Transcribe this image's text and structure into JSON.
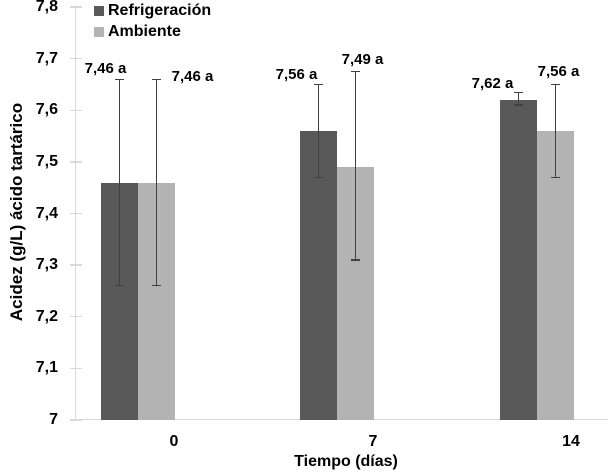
{
  "chart_data": {
    "type": "bar",
    "title": "",
    "xlabel": "Tiempo (días)",
    "ylabel": "Acidez (g/L) ácido tartárico",
    "categories": [
      "0",
      "7",
      "14"
    ],
    "ylim": [
      7,
      7.8
    ],
    "grid": false,
    "legend_position": "top-left-two-rows",
    "background_color": "#ffffff",
    "axis_color": "#d9d9d9",
    "error_bar_color": "#404040",
    "y_ticks": [
      {
        "label": "7,8",
        "value": 7.8
      },
      {
        "label": "7,7",
        "value": 7.7
      },
      {
        "label": "7,6",
        "value": 7.6
      },
      {
        "label": "7,5",
        "value": 7.5
      },
      {
        "label": "7,4",
        "value": 7.4
      },
      {
        "label": "7,3",
        "value": 7.3
      },
      {
        "label": "7,2",
        "value": 7.2
      },
      {
        "label": "7,1",
        "value": 7.1
      },
      {
        "label": "7",
        "value": 7.0
      }
    ],
    "series": [
      {
        "name": "Refrigeración",
        "color": "#595959",
        "values": [
          7.46,
          7.56,
          7.62
        ],
        "labels": [
          "7,46 a",
          "7,56 a",
          "7,62 a"
        ],
        "error_top": [
          7.66,
          7.65,
          7.635
        ],
        "error_bottom": [
          7.26,
          7.47,
          7.61
        ]
      },
      {
        "name": "Ambiente",
        "color": "#b3b3b3",
        "values": [
          7.46,
          7.49,
          7.56
        ],
        "labels": [
          "7,46 a",
          "7,49 a",
          "7,56 a"
        ],
        "error_top": [
          7.66,
          7.675,
          7.65
        ],
        "error_bottom": [
          7.26,
          7.31,
          7.47
        ]
      }
    ]
  }
}
